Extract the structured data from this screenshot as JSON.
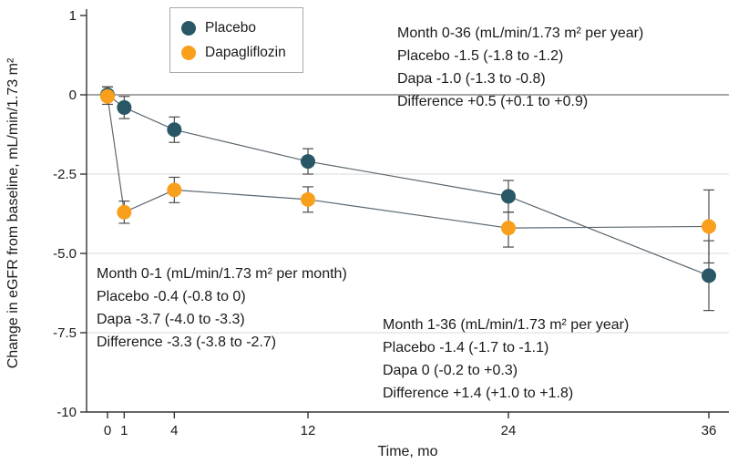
{
  "chart_data": {
    "type": "line",
    "title": "",
    "xlabel": "Time, mo",
    "ylabel": "Change in eGFR from baseline, mL/min/1.73 m²",
    "x": [
      0,
      1,
      4,
      12,
      24,
      36
    ],
    "x_tick_labels": [
      "0",
      "1",
      "4",
      "12",
      "24",
      "36"
    ],
    "xlim": [
      0,
      36
    ],
    "y_tick_values": [
      1,
      0,
      -2.5,
      -5,
      -7.5,
      -10
    ],
    "y_tick_labels": [
      "1",
      "0",
      "-2.5",
      "-5.0",
      "-7.5",
      "-10"
    ],
    "ylim": [
      -10,
      1
    ],
    "grid": "horizontal",
    "legend_position": "top-left",
    "series": [
      {
        "name": "Placebo",
        "color": "#2a5766",
        "values": [
          0,
          -0.4,
          -1.1,
          -2.1,
          -3.2,
          -5.7
        ],
        "ci_low": [
          -0.1,
          -0.75,
          -1.5,
          -2.5,
          -3.7,
          -6.8
        ],
        "ci_high": [
          0.1,
          -0.05,
          -0.7,
          -1.7,
          -2.7,
          -4.6
        ]
      },
      {
        "name": "Dapagliflozin",
        "color": "#f8a01c",
        "values": [
          -0.05,
          -3.7,
          -3.0,
          -3.3,
          -4.2,
          -4.15
        ],
        "ci_low": [
          -0.3,
          -4.05,
          -3.4,
          -3.7,
          -4.8,
          -5.3
        ],
        "ci_high": [
          0.1,
          -3.35,
          -2.6,
          -2.9,
          -3.7,
          -3.0
        ]
      }
    ],
    "annotations": [
      {
        "position": "top-right",
        "lines": [
          "Month 0-36 (mL/min/1.73 m² per year)",
          "Placebo -1.5 (-1.8 to -1.2)",
          "Dapa -1.0 (-1.3 to -0.8)",
          "Difference +0.5 (+0.1 to +0.9)"
        ]
      },
      {
        "position": "bottom-left",
        "lines": [
          "Month 0-1 (mL/min/1.73 m² per month)",
          "Placebo -0.4 (-0.8 to 0)",
          "Dapa -3.7 (-4.0 to -3.3)",
          "Difference -3.3 (-3.8 to -2.7)"
        ]
      },
      {
        "position": "bottom-middle",
        "lines": [
          "Month 1-36 (mL/min/1.73 m² per year)",
          "Placebo -1.4 (-1.7 to -1.1)",
          "Dapa 0 (-0.2 to +0.3)",
          "Difference +1.4 (+1.0 to +1.8)"
        ]
      }
    ],
    "style": {
      "axis_color": "#333333",
      "zero_line_color": "#4d4d4d",
      "grid_color": "#d9d9d9",
      "line_color": "#5b6770",
      "error_color": "#4d4d4d",
      "text_color": "#1a1a1a"
    }
  }
}
